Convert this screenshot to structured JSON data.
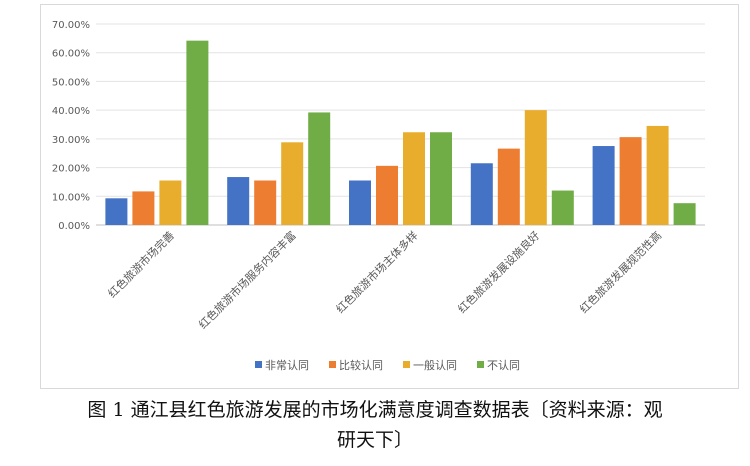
{
  "caption": {
    "line1": "图 1 通江县红色旅游发展的市场化满意度调查数据表〔资料来源：观",
    "line2": "研天下〕"
  },
  "chart_data": {
    "type": "bar",
    "categories": [
      "红色旅游市场完善",
      "红色旅游市场服务内容丰富",
      "红色旅游市场主体多样",
      "红色旅游发展设施良好",
      "红色旅游发展规范性高"
    ],
    "series": [
      {
        "name": "非常认同",
        "color": "#4472c4",
        "values": [
          9.3,
          16.7,
          15.5,
          21.5,
          27.5
        ]
      },
      {
        "name": "比较认同",
        "color": "#ed7d31",
        "values": [
          11.7,
          15.5,
          20.6,
          26.6,
          30.6
        ]
      },
      {
        "name": "一般认同",
        "color": "#e8ad2c",
        "values": [
          15.5,
          28.8,
          32.3,
          40.0,
          34.5
        ]
      },
      {
        "name": "不认同",
        "color": "#70ad47",
        "values": [
          64.2,
          39.2,
          32.3,
          12.0,
          7.6
        ]
      }
    ],
    "yticks": [
      "0.00%",
      "10.00%",
      "20.00%",
      "30.00%",
      "40.00%",
      "50.00%",
      "60.00%",
      "70.00%"
    ],
    "ylim": [
      0,
      70
    ],
    "grid": true,
    "legend_position": "bottom"
  }
}
